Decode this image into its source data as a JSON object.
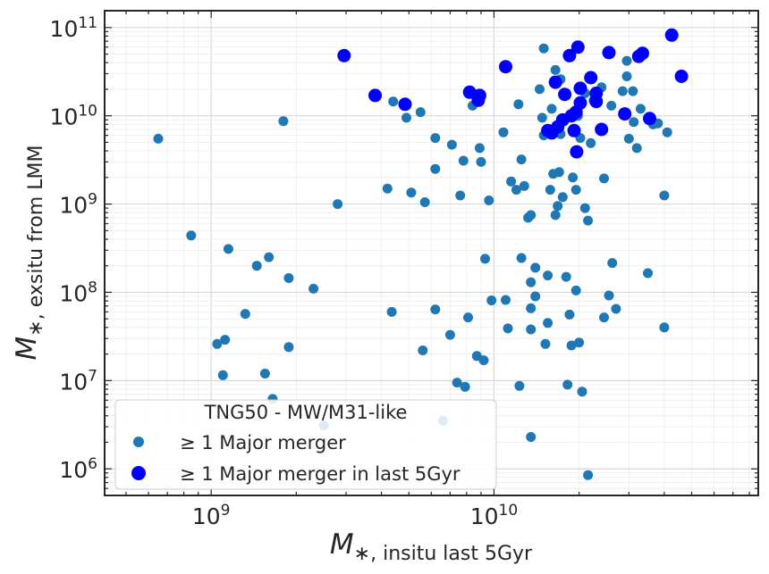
{
  "chart_data": {
    "type": "scatter",
    "xscale": "log",
    "yscale": "log",
    "xlim": [
      420000000.0,
      86000000000.0
    ],
    "ylim": [
      500000.0,
      155000000000.0
    ],
    "grid": true,
    "xlabel": {
      "symbol": "M",
      "sub": "∗, insitu last 5Gyr"
    },
    "ylabel": {
      "symbol": "M",
      "sub": "∗, exsitu from LMM"
    },
    "x_ticks": [
      {
        "value": 1000000000.0,
        "base": "10",
        "exp": "9"
      },
      {
        "value": 10000000000.0,
        "base": "10",
        "exp": "10"
      }
    ],
    "y_ticks": [
      {
        "value": 1000000.0,
        "base": "10",
        "exp": "6"
      },
      {
        "value": 10000000.0,
        "base": "10",
        "exp": "7"
      },
      {
        "value": 100000000.0,
        "base": "10",
        "exp": "8"
      },
      {
        "value": 1000000000.0,
        "base": "10",
        "exp": "9"
      },
      {
        "value": 10000000000.0,
        "base": "10",
        "exp": "10"
      },
      {
        "value": 100000000000.0,
        "base": "10",
        "exp": "11"
      }
    ],
    "legend": {
      "title": "TNG50 - MW/M31-like",
      "position": "lower-left",
      "entries": [
        "≥ 1 Major merger",
        "≥ 1 Major merger in last 5Gyr"
      ]
    },
    "series": [
      {
        "name": "≥ 1 Major merger",
        "color": "#1f77b4",
        "marker_size": "small",
        "points": [
          [
            650000000.0,
            5500000000.0
          ],
          [
            850000000.0,
            440000000.0
          ],
          [
            1050000000.0,
            26000000.0
          ],
          [
            1100000000.0,
            11500000.0
          ],
          [
            1120000000.0,
            29000000.0
          ],
          [
            1150000000.0,
            310000000.0
          ],
          [
            1320000000.0,
            57000000.0
          ],
          [
            1450000000.0,
            200000000.0
          ],
          [
            1550000000.0,
            12000000.0
          ],
          [
            1600000000.0,
            250000000.0
          ],
          [
            1650000000.0,
            6200000.0
          ],
          [
            1800000000.0,
            8700000000.0
          ],
          [
            1880000000.0,
            145000000.0
          ],
          [
            1880000000.0,
            24000000.0
          ],
          [
            2300000000.0,
            110000000.0
          ],
          [
            2500000000.0,
            3100000.0
          ],
          [
            2800000000.0,
            1000000000.0
          ],
          [
            4200000000.0,
            1500000000.0
          ],
          [
            4350000000.0,
            60000000.0
          ],
          [
            4400000000.0,
            14500000000.0
          ],
          [
            4900000000.0,
            9500000000.0
          ],
          [
            5100000000.0,
            1350000000.0
          ],
          [
            5500000000.0,
            11000000000.0
          ],
          [
            5600000000.0,
            22000000.0
          ],
          [
            5700000000.0,
            1050000000.0
          ],
          [
            6200000000.0,
            5600000000.0
          ],
          [
            6200000000.0,
            2500000000.0
          ],
          [
            6200000000.0,
            64000000.0
          ],
          [
            6600000000.0,
            3500000.0
          ],
          [
            7000000000.0,
            33000000.0
          ],
          [
            7100000000.0,
            4700000000.0
          ],
          [
            7400000000.0,
            9500000.0
          ],
          [
            7600000000.0,
            1250000000.0
          ],
          [
            7800000000.0,
            3100000000.0
          ],
          [
            7900000000.0,
            8500000.0
          ],
          [
            8100000000.0,
            52000000.0
          ],
          [
            8400000000.0,
            13000000000.0
          ],
          [
            8700000000.0,
            19000000.0
          ],
          [
            8900000000.0,
            4300000000.0
          ],
          [
            9000000000.0,
            3000000000.0
          ],
          [
            9200000000.0,
            17000000.0
          ],
          [
            9300000000.0,
            240000000.0
          ],
          [
            9600000000.0,
            1100000000.0
          ],
          [
            9800000000.0,
            81000000.0
          ],
          [
            10800000000.0,
            6500000000.0
          ],
          [
            11000000000.0,
            82000000.0
          ],
          [
            11200000000.0,
            39000000.0
          ],
          [
            11500000000.0,
            1800000000.0
          ],
          [
            12000000000.0,
            1450000000.0
          ],
          [
            12200000000.0,
            13500000000.0
          ],
          [
            12300000000.0,
            8700000.0
          ],
          [
            12500000000.0,
            3200000000.0
          ],
          [
            12500000000.0,
            245000000.0
          ],
          [
            12800000000.0,
            1600000000.0
          ],
          [
            13200000000.0,
            700000000.0
          ],
          [
            13500000000.0,
            750000000.0
          ],
          [
            13500000000.0,
            66000000.0
          ],
          [
            13500000000.0,
            38000000.0
          ],
          [
            13500000000.0,
            130000000.0
          ],
          [
            13500000000.0,
            2300000.0
          ],
          [
            14000000000.0,
            190000000.0
          ],
          [
            14000000000.0,
            90000000.0
          ],
          [
            14500000000.0,
            20000000000.0
          ],
          [
            14800000000.0,
            9500000000.0
          ],
          [
            15000000000.0,
            58000000000.0
          ],
          [
            15000000000.0,
            6000000000.0
          ],
          [
            15200000000.0,
            26000000.0
          ],
          [
            15500000000.0,
            155000000.0
          ],
          [
            15500000000.0,
            45000000.0
          ],
          [
            15800000000.0,
            1450000000.0
          ],
          [
            16000000000.0,
            12000000000.0
          ],
          [
            16200000000.0,
            2200000000.0
          ],
          [
            16500000000.0,
            33000000000.0
          ],
          [
            16500000000.0,
            750000000.0
          ],
          [
            16800000000.0,
            950000000.0
          ],
          [
            17000000000.0,
            2300000000.0
          ],
          [
            17200000000.0,
            26000000000.0
          ],
          [
            17200000000.0,
            6200000000.0
          ],
          [
            17500000000.0,
            1200000000.0
          ],
          [
            18000000000.0,
            150000000.0
          ],
          [
            18200000000.0,
            9000000.0
          ],
          [
            18500000000.0,
            56000000.0
          ],
          [
            18800000000.0,
            25000000.0
          ],
          [
            19000000000.0,
            2000000000.0
          ],
          [
            19500000000.0,
            1450000000.0
          ],
          [
            19500000000.0,
            105000000.0
          ],
          [
            19800000000.0,
            10000000000.0
          ],
          [
            20000000000.0,
            27000000.0
          ],
          [
            20200000000.0,
            5600000000.0
          ],
          [
            20500000000.0,
            7500000.0
          ],
          [
            21000000000.0,
            18000000000.0
          ],
          [
            21000000000.0,
            900000000.0
          ],
          [
            21500000000.0,
            650000000.0
          ],
          [
            21500000000.0,
            850000.0
          ],
          [
            22000000000.0,
            4900000000.0
          ],
          [
            22500000000.0,
            15000000000.0
          ],
          [
            23000000000.0,
            16000000000.0
          ],
          [
            24000000000.0,
            21000000000.0
          ],
          [
            24500000000.0,
            1950000000.0
          ],
          [
            24500000000.0,
            52000000.0
          ],
          [
            25500000000.0,
            92000000.0
          ],
          [
            26000000000.0,
            13000000000.0
          ],
          [
            26200000000.0,
            215000000.0
          ],
          [
            27000000000.0,
            65000000.0
          ],
          [
            28500000000.0,
            19000000000.0
          ],
          [
            29500000000.0,
            42000000000.0
          ],
          [
            29500000000.0,
            28000000000.0
          ],
          [
            30000000000.0,
            5500000000.0
          ],
          [
            31000000000.0,
            19000000000.0
          ],
          [
            31200000000.0,
            8500000000.0
          ],
          [
            32000000000.0,
            4300000000.0
          ],
          [
            33000000000.0,
            12000000000.0
          ],
          [
            35000000000.0,
            165000000.0
          ],
          [
            36500000000.0,
            8000000000.0
          ],
          [
            38000000000.0,
            8200000000.0
          ],
          [
            40000000000.0,
            1250000000.0
          ],
          [
            40000000000.0,
            40000000.0
          ],
          [
            41000000000.0,
            6500000000.0
          ]
        ]
      },
      {
        "name": "≥ 1 Major merger in last 5Gyr",
        "color": "#0000ff",
        "marker_size": "large",
        "points": [
          [
            2950000000.0,
            48000000000.0
          ],
          [
            3800000000.0,
            17000000000.0
          ],
          [
            4850000000.0,
            13500000000.0
          ],
          [
            8200000000.0,
            18500000000.0
          ],
          [
            8800000000.0,
            15000000000.0
          ],
          [
            8900000000.0,
            17000000000.0
          ],
          [
            11000000000.0,
            36000000000.0
          ],
          [
            15500000000.0,
            6800000000.0
          ],
          [
            16000000000.0,
            6400000000.0
          ],
          [
            16500000000.0,
            24000000000.0
          ],
          [
            16800000000.0,
            7500000000.0
          ],
          [
            17500000000.0,
            9000000000.0
          ],
          [
            17800000000.0,
            17500000000.0
          ],
          [
            18500000000.0,
            48000000000.0
          ],
          [
            18800000000.0,
            10000000000.0
          ],
          [
            19200000000.0,
            6800000000.0
          ],
          [
            19500000000.0,
            11000000000.0
          ],
          [
            19600000000.0,
            3900000000.0
          ],
          [
            19800000000.0,
            60000000000.0
          ],
          [
            20200000000.0,
            14000000000.0
          ],
          [
            20200000000.0,
            20500000000.0
          ],
          [
            22000000000.0,
            27000000000.0
          ],
          [
            23000000000.0,
            18000000000.0
          ],
          [
            23000000000.0,
            14500000000.0
          ],
          [
            24000000000.0,
            7000000000.0
          ],
          [
            25500000000.0,
            52000000000.0
          ],
          [
            29000000000.0,
            10500000000.0
          ],
          [
            32500000000.0,
            47000000000.0
          ],
          [
            33500000000.0,
            51000000000.0
          ],
          [
            35500000000.0,
            9300000000.0
          ],
          [
            42500000000.0,
            82000000000.0
          ],
          [
            46000000000.0,
            28000000000.0
          ]
        ]
      }
    ]
  }
}
